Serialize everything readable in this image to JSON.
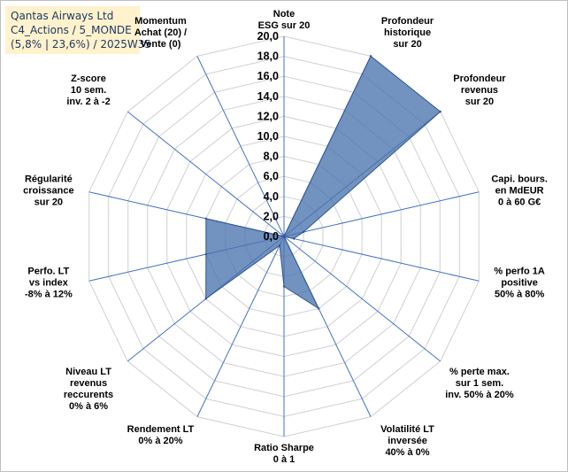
{
  "title": {
    "line1": "Qantas Airways Ltd",
    "line2": "C4_Actions / 5_MONDE",
    "line3": "(5,8% | 23,6%) / 2025W35"
  },
  "colors": {
    "fill": "#4a73ad",
    "stroke": "#2f5597",
    "ring": "#d0d0d0",
    "spoke": "#4472c4",
    "title_bg": "#fff2cc"
  },
  "chart_data": {
    "type": "radar",
    "rmin": 0,
    "rmax": 20,
    "tick_step": 2,
    "ticks": [
      "0,0",
      "2,0",
      "4,0",
      "6,0",
      "8,0",
      "10,0",
      "12,0",
      "14,0",
      "16,0",
      "18,0",
      "20,0"
    ],
    "axes": [
      {
        "label": [
          "Note",
          "ESG sur 20"
        ],
        "value": 0.0
      },
      {
        "label": [
          "Profondeur",
          "historique",
          "sur 20"
        ],
        "value": 20.0
      },
      {
        "label": [
          "Profondeur",
          "revenus",
          "sur 20"
        ],
        "value": 20.0
      },
      {
        "label": [
          "Capi. bours.",
          "en MdEUR",
          "0 à 60 G€"
        ],
        "value": 2.0
      },
      {
        "label": [
          "% perfo 1A",
          "positive",
          "50% à 80%"
        ],
        "value": 1.0
      },
      {
        "label": [
          "% perte max.",
          "sur 1 sem.",
          "inv. 50% à 20%"
        ],
        "value": 0.0
      },
      {
        "label": [
          "Volatilité LT",
          "inversée",
          "40% à 0%"
        ],
        "value": 8.0
      },
      {
        "label": [
          "Ratio Sharpe",
          "0 à 1"
        ],
        "value": 5.0
      },
      {
        "label": [
          "Rendement LT",
          "0% à 20%"
        ],
        "value": 1.0
      },
      {
        "label": [
          "Niveau LT",
          "revenus",
          "reccurents",
          "0% à 6%"
        ],
        "value": 10.0
      },
      {
        "label": [
          "Perfo. LT",
          "vs index",
          "-8% à 12%"
        ],
        "value": 8.0
      },
      {
        "label": [
          "Régularité",
          "croissance",
          "sur 20"
        ],
        "value": 8.0
      },
      {
        "label": [
          "Z-score",
          "10 sem.",
          "inv. 2 à -2"
        ],
        "value": 0.0
      },
      {
        "label": [
          "Momentum",
          "Achat (20) /",
          "Vente (0)"
        ],
        "value": 0.0
      }
    ]
  }
}
